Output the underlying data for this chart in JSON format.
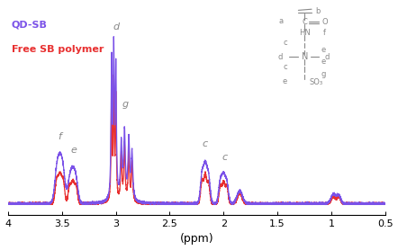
{
  "xlabel": "(ppm)",
  "xlim": [
    4.0,
    0.5
  ],
  "xticks": [
    4.0,
    3.5,
    3.0,
    2.5,
    2.0,
    1.5,
    1.0,
    0.5
  ],
  "legend_qd": "QD-SB",
  "legend_free": "Free SB polymer",
  "color_qd": "#7b52e8",
  "color_free": "#e83030",
  "background": "#ffffff",
  "fontsize_legend": 8,
  "fontsize_label": 9,
  "fontsize_tick": 8,
  "fontsize_peak_label": 8,
  "struct_color": "#888888",
  "struct_fs": 6
}
